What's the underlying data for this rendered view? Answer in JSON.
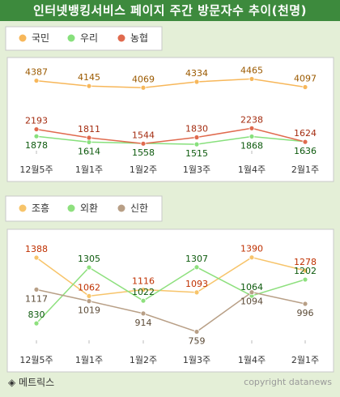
{
  "title": "인터넷뱅킹서비스 페이지 주간 방문자수 추이(천명)",
  "footer": {
    "source": "◈ 메트릭스",
    "copyright": "copyright datanews"
  },
  "chart_data": [
    {
      "type": "line",
      "categories": [
        "12월5주",
        "1월1주",
        "1월2주",
        "1월3주",
        "1월4주",
        "2월1주"
      ],
      "legend_position": "top-left",
      "grid": false,
      "ylim": [
        1300,
        4700
      ],
      "series": [
        {
          "name": "국민",
          "values": [
            4387,
            4145,
            4069,
            4334,
            4465,
            4097
          ],
          "color": "#f7b75a",
          "label_color": "#9b5a00",
          "label_pos": "above"
        },
        {
          "name": "우리",
          "values": [
            1878,
            1614,
            1558,
            1515,
            1868,
            1636
          ],
          "color": "#87e07c",
          "label_color": "#0d5a0d",
          "label_pos": "below"
        },
        {
          "name": "농협",
          "values": [
            2193,
            1811,
            1544,
            1830,
            2238,
            1624
          ],
          "color": "#e06a4e",
          "label_color": "#a42c10",
          "label_pos": "above"
        }
      ]
    },
    {
      "type": "line",
      "categories": [
        "12월5주",
        "1월1주",
        "1월2주",
        "1월3주",
        "1월4주",
        "2월1주"
      ],
      "legend_position": "top-left",
      "grid": false,
      "ylim": [
        700,
        1450
      ],
      "series": [
        {
          "name": "조흥",
          "values": [
            1388,
            1062,
            1116,
            1093,
            1390,
            1278
          ],
          "color": "#f7c46a",
          "label_color": "#bf3000",
          "label_pos": "above"
        },
        {
          "name": "외환",
          "values": [
            830,
            1305,
            1022,
            1307,
            1064,
            1202
          ],
          "color": "#8ee07e",
          "label_color": "#0d5a0d",
          "label_pos": "above"
        },
        {
          "name": "신한",
          "values": [
            1117,
            1019,
            914,
            759,
            1094,
            996
          ],
          "color": "#b89f86",
          "label_color": "#5b4a36",
          "label_pos": "below"
        }
      ]
    }
  ]
}
